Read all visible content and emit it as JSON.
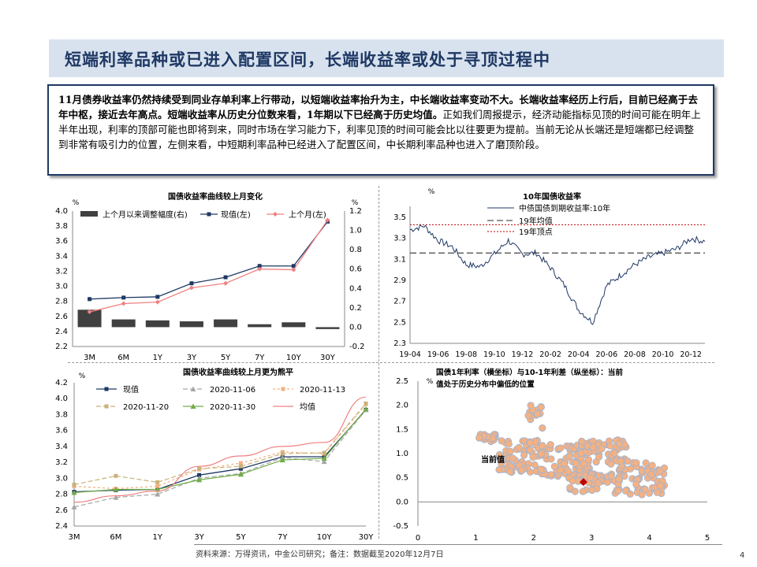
{
  "title": "短端利率品种或已进入配置区间，长端收益率或处于寻顶过程中",
  "summary": {
    "bold": "11月债券收益率仍然持续受到同业存单利率上行带动，以短端收益率抬升为主，中长端收益率变动不大。长端收益率经历上行后，目前已经高于去年中枢，接近去年高点。短端收益率从历史分位数来看，1年期以下已经高于历史均值。",
    "normal": "正如我们周报提示，经济动能指标见顶的时间可能在明年上半年出现，利率的顶部可能也即将到来，同时市场在学习能力下，利率见顶的时间可能会比以往要更为提前。当前无论从长端还是短端都已经调整到非常有吸引力的位置，左侧来看，中短期利率品种已经进入了配置区间，中长期利率品种也进入了磨顶阶段。"
  },
  "footer": "资料来源：万得资讯，中金公司研究；备注：数据截至2020年12月7日",
  "page_number": "4",
  "colors": {
    "navy": "#1f3864",
    "pink": "#f08080",
    "bar": "#404040",
    "orange": "#f4b183",
    "gray": "#a6a6a6",
    "olive": "#c9b17a",
    "green": "#70ad47",
    "red": "#c00000"
  },
  "chart_data": [
    {
      "id": "tl",
      "type": "bar",
      "title": "国债收益率曲线较上月变化",
      "ylabel_left": "%",
      "ylabel_right": "%",
      "categories": [
        "3M",
        "6M",
        "1Y",
        "3Y",
        "5Y",
        "7Y",
        "10Y",
        "30Y"
      ],
      "ylim_left": [
        2.2,
        4.0
      ],
      "yticks_left": [
        2.2,
        2.4,
        2.6,
        2.8,
        3.0,
        3.2,
        3.4,
        3.6,
        3.8,
        4.0
      ],
      "ylim_right": [
        -0.2,
        1.2
      ],
      "yticks_right": [
        -0.2,
        0.0,
        0.2,
        0.4,
        0.6,
        0.8,
        1.0,
        1.2
      ],
      "legend": [
        "上个月以来调整幅度(右)",
        "现值(左)",
        "上个月(左)"
      ],
      "series": [
        {
          "name": "上个月以来调整幅度(右)",
          "kind": "bar",
          "axis": "right",
          "values": [
            0.18,
            0.08,
            0.07,
            0.06,
            0.08,
            0.03,
            0.05,
            -0.02
          ]
        },
        {
          "name": "现值(左)",
          "kind": "line",
          "axis": "left",
          "values": [
            2.83,
            2.85,
            2.86,
            3.04,
            3.12,
            3.27,
            3.27,
            3.86
          ]
        },
        {
          "name": "上个月(左)",
          "kind": "line",
          "axis": "left",
          "values": [
            2.66,
            2.77,
            2.79,
            2.98,
            3.04,
            3.23,
            3.22,
            3.88
          ]
        }
      ]
    },
    {
      "id": "tr",
      "type": "line",
      "title": "10年国债收益率",
      "ylabel": "%",
      "ylim": [
        2.3,
        3.5
      ],
      "yticks": [
        2.3,
        2.5,
        2.7,
        2.9,
        3.1,
        3.3,
        3.5
      ],
      "xticks": [
        "19-04",
        "19-06",
        "19-08",
        "19-10",
        "19-12",
        "20-02",
        "20-04",
        "20-06",
        "20-08",
        "20-10",
        "20-12"
      ],
      "legend": [
        "中债国债到期收益率:10年",
        "19年均值",
        "19年顶点"
      ],
      "mean_2019": 3.16,
      "top_2019": 3.43,
      "series": [
        {
          "name": "中债国债到期收益率:10年",
          "x_index": [
            0,
            0.5,
            1,
            1.5,
            2,
            2.5,
            3,
            3.5,
            4,
            4.5,
            5,
            5.5,
            6,
            6.5,
            7,
            7.5,
            8,
            8.5,
            9,
            9.5,
            10,
            10.5
          ],
          "values": [
            3.38,
            3.42,
            3.28,
            3.22,
            3.05,
            3.03,
            3.15,
            3.28,
            3.15,
            3.16,
            3.02,
            2.85,
            2.62,
            2.5,
            2.85,
            2.95,
            3.05,
            3.12,
            3.16,
            3.2,
            3.3,
            3.27
          ]
        }
      ]
    },
    {
      "id": "bl",
      "type": "line",
      "title": "国债收益率曲线较上月更为熊平",
      "ylabel": "%",
      "categories": [
        "3M",
        "6M",
        "1Y",
        "3Y",
        "5Y",
        "7Y",
        "10Y",
        "30Y"
      ],
      "ylim": [
        2.4,
        4.2
      ],
      "yticks": [
        2.4,
        2.6,
        2.8,
        3.0,
        3.2,
        3.4,
        3.6,
        3.8,
        4.0,
        4.2
      ],
      "legend": [
        "现值",
        "2020-11-06",
        "2020-11-13",
        "2020-11-20",
        "2020-11-30",
        "均值"
      ],
      "series": [
        {
          "name": "现值",
          "values": [
            2.83,
            2.85,
            2.86,
            3.04,
            3.12,
            3.27,
            3.27,
            3.86
          ]
        },
        {
          "name": "2020-11-06",
          "values": [
            2.64,
            2.76,
            2.8,
            3.0,
            3.06,
            3.26,
            3.21,
            3.86
          ]
        },
        {
          "name": "2020-11-13",
          "values": [
            2.9,
            2.87,
            2.9,
            3.11,
            3.19,
            3.33,
            3.31,
            3.93
          ]
        },
        {
          "name": "2020-11-20",
          "values": [
            2.92,
            3.03,
            2.95,
            3.12,
            3.15,
            3.31,
            3.32,
            3.94
          ]
        },
        {
          "name": "2020-11-30",
          "values": [
            2.82,
            2.86,
            2.86,
            2.98,
            3.05,
            3.23,
            3.25,
            3.87
          ]
        },
        {
          "name": "均值",
          "values": [
            2.7,
            2.78,
            2.84,
            3.15,
            3.28,
            3.4,
            3.45,
            4.02
          ]
        }
      ]
    },
    {
      "id": "br",
      "type": "scatter",
      "title": "国债1年利率（横坐标）与10-1年利差（纵坐标）：当前值处于历史分布中偏低的位置",
      "ylabel": "%",
      "xlim": [
        0,
        5
      ],
      "xticks": [
        0,
        1,
        2,
        3,
        4,
        5
      ],
      "ylim": [
        -0.5,
        2.5
      ],
      "yticks": [
        -0.5,
        0.0,
        0.5,
        1.0,
        1.5,
        2.0,
        2.5
      ],
      "annotation": "当前值",
      "current": {
        "x": 2.86,
        "y": 0.41
      }
    }
  ]
}
